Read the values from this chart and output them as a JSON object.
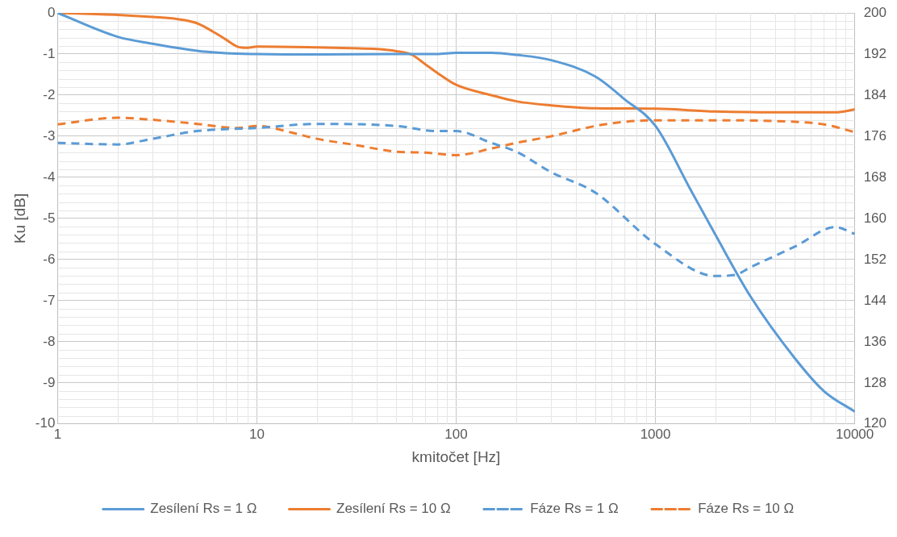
{
  "chart_data": {
    "type": "line",
    "xlabel": "kmitočet [Hz]",
    "ylabel": "Ku [dB]",
    "log": "x",
    "grid": true,
    "legend": "bottom",
    "marker": "none",
    "xlim": [
      1,
      10000
    ],
    "xticks": [
      1,
      10,
      100,
      1000,
      10000
    ],
    "ylim": [
      -10,
      0
    ],
    "yticks": [
      -10,
      -9,
      -8,
      -7,
      -6,
      -5,
      -4,
      -3,
      -2,
      -1,
      0
    ],
    "y2lim": [
      120,
      200
    ],
    "y2ticks": [
      120,
      128,
      136,
      144,
      152,
      160,
      168,
      176,
      184,
      192,
      200
    ],
    "series": [
      {
        "name": "Zesílení Rs = 1 Ω",
        "color": "#5b9bd5",
        "line_style": "solid",
        "x": [
          1,
          2,
          3,
          5,
          7,
          10,
          20,
          50,
          80,
          100,
          150,
          200,
          300,
          500,
          700,
          1000,
          1500,
          2000,
          3000,
          5000,
          7000,
          10000
        ],
        "values": [
          0,
          -0.58,
          -0.75,
          -0.92,
          -0.98,
          -1.0,
          -1.01,
          -1.0,
          -1.0,
          -0.97,
          -0.97,
          -1.02,
          -1.15,
          -1.55,
          -2.1,
          -2.75,
          -4.3,
          -5.4,
          -6.9,
          -8.4,
          -9.2,
          -9.7
        ]
      },
      {
        "name": "Zesílení Rs = 10 Ω",
        "color": "#ed7d31",
        "line_style": "solid",
        "x": [
          1,
          2,
          3,
          4,
          5,
          6,
          7,
          8,
          9,
          10,
          20,
          30,
          40,
          50,
          60,
          70,
          80,
          100,
          150,
          200,
          300,
          500,
          1000,
          2000,
          5000,
          8000,
          10000
        ],
        "values": [
          0,
          -0.05,
          -0.1,
          -0.15,
          -0.25,
          -0.45,
          -0.65,
          -0.82,
          -0.85,
          -0.82,
          -0.84,
          -0.86,
          -0.88,
          -0.93,
          -1.02,
          -1.25,
          -1.45,
          -1.75,
          -2.0,
          -2.15,
          -2.25,
          -2.32,
          -2.33,
          -2.4,
          -2.42,
          -2.42,
          -2.35
        ]
      },
      {
        "name": "Fáze Rs = 1 Ω",
        "color": "#5b9bd5",
        "line_style": "dashed",
        "axis": "y2",
        "x": [
          1,
          2,
          3,
          5,
          10,
          20,
          50,
          80,
          100,
          150,
          200,
          300,
          500,
          1000,
          2000,
          2500,
          3000,
          5000,
          8000,
          10000
        ],
        "values": [
          174.7,
          174.4,
          175.5,
          177,
          177.6,
          178.4,
          178,
          177,
          177,
          174.7,
          173,
          169,
          165,
          155,
          148.8,
          149,
          150.5,
          154.5,
          158.3,
          157
        ]
      },
      {
        "name": "Fáze Rs = 10 Ω",
        "color": "#ed7d31",
        "line_style": "dashed",
        "axis": "y2",
        "x": [
          1,
          2,
          3,
          5,
          8,
          10,
          15,
          20,
          30,
          50,
          70,
          100,
          150,
          200,
          300,
          500,
          700,
          1000,
          2000,
          5000,
          7000,
          10000
        ],
        "values": [
          178.3,
          179.6,
          179.2,
          178.4,
          177.6,
          178,
          176.7,
          175.5,
          174.4,
          173,
          172.8,
          172.3,
          173.6,
          174.7,
          176,
          178,
          178.8,
          179.1,
          179.1,
          178.8,
          178.3,
          176.8
        ]
      }
    ]
  }
}
